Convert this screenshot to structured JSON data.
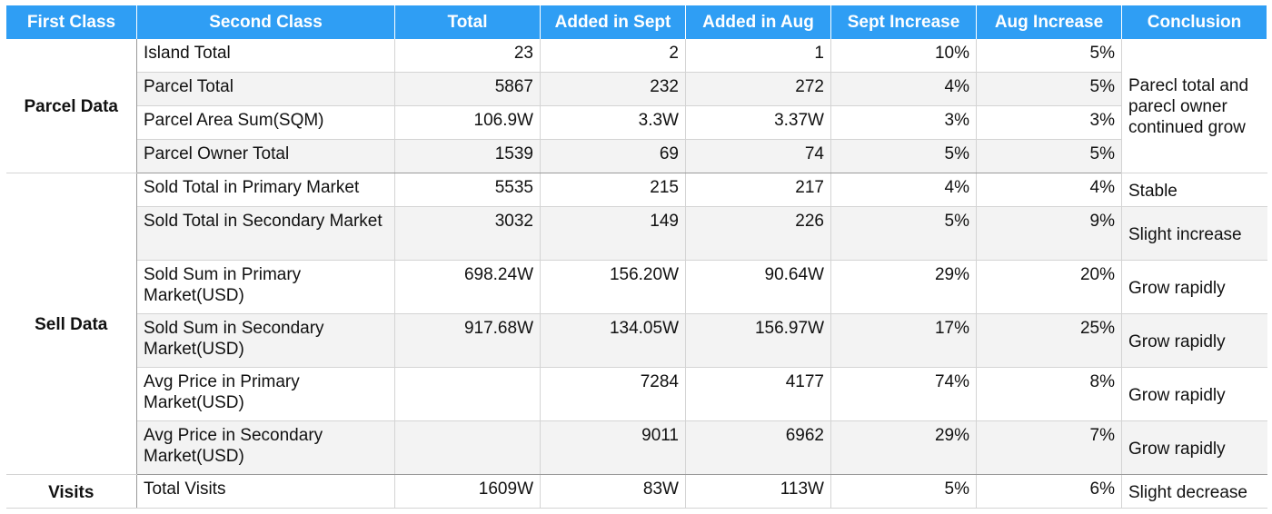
{
  "headers": [
    "First Class",
    "Second Class",
    "Total",
    "Added in Sept",
    "Added in Aug",
    "Sept Increase",
    "Aug Increase",
    "Conclusion"
  ],
  "groups": [
    {
      "name": "Parcel Data",
      "conclusion": "Parecl total and parecl owner continued grow",
      "rows": [
        {
          "second": "Island Total",
          "total": "23",
          "sept": "2",
          "aug": "1",
          "sept_inc": "10%",
          "aug_inc": "5%"
        },
        {
          "second": "Parcel Total",
          "total": "5867",
          "sept": "232",
          "aug": "272",
          "sept_inc": "4%",
          "aug_inc": "5%"
        },
        {
          "second": "Parcel Area Sum(SQM)",
          "total": "106.9W",
          "sept": "3.3W",
          "aug": "3.37W",
          "sept_inc": "3%",
          "aug_inc": "3%"
        },
        {
          "second": "Parcel Owner Total",
          "total": "1539",
          "sept": "69",
          "aug": "74",
          "sept_inc": "5%",
          "aug_inc": "5%"
        }
      ]
    },
    {
      "name": "Sell Data",
      "rows": [
        {
          "second": "Sold Total in Primary Market",
          "total": "5535",
          "sept": "215",
          "aug": "217",
          "sept_inc": "4%",
          "aug_inc": "4%",
          "conclusion": "Stable"
        },
        {
          "second": "Sold Total in Secondary Market",
          "total": "3032",
          "sept": "149",
          "aug": "226",
          "sept_inc": "5%",
          "aug_inc": "9%",
          "conclusion": "Slight increase"
        },
        {
          "second": "Sold Sum in Primary Market(USD)",
          "total": "698.24W",
          "sept": "156.20W",
          "aug": "90.64W",
          "sept_inc": "29%",
          "aug_inc": "20%",
          "conclusion": "Grow rapidly"
        },
        {
          "second": "Sold Sum in Secondary Market(USD)",
          "total": "917.68W",
          "sept": "134.05W",
          "aug": "156.97W",
          "sept_inc": "17%",
          "aug_inc": "25%",
          "conclusion": "Grow rapidly"
        },
        {
          "second": "Avg Price in Primary Market(USD)",
          "total": "",
          "sept": "7284",
          "aug": "4177",
          "sept_inc": "74%",
          "aug_inc": "8%",
          "conclusion": "Grow rapidly"
        },
        {
          "second": "Avg Price in Secondary Market(USD)",
          "total": "",
          "sept": "9011",
          "aug": "6962",
          "sept_inc": "29%",
          "aug_inc": "7%",
          "conclusion": "Grow rapidly"
        }
      ]
    },
    {
      "name": "Visits",
      "rows": [
        {
          "second": "Total Visits",
          "total": "1609W",
          "sept": "83W",
          "aug": "113W",
          "sept_inc": "5%",
          "aug_inc": "6%",
          "conclusion": "Slight decrease"
        }
      ]
    }
  ]
}
